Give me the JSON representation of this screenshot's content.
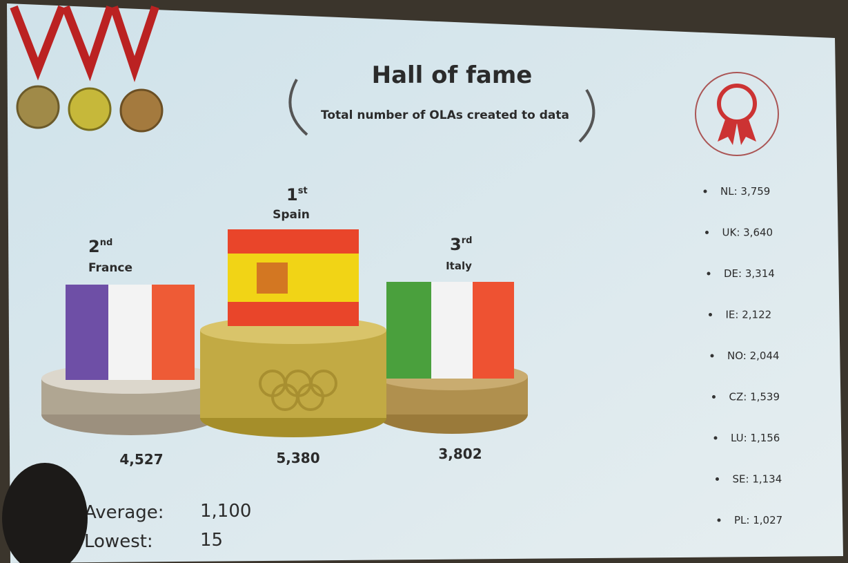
{
  "header": {
    "title": "Hall of fame",
    "subtitle": "Total number of OLAs created to data"
  },
  "podium": [
    {
      "rank": "1",
      "rank_suffix": "st",
      "country": "Spain",
      "total": "5,380"
    },
    {
      "rank": "2",
      "rank_suffix": "nd",
      "country": "France",
      "total": "4,527"
    },
    {
      "rank": "3",
      "rank_suffix": "rd",
      "country": "Italy",
      "total": "3,802"
    }
  ],
  "stats": [
    {
      "label": "Average:",
      "value": "1,100"
    },
    {
      "label": "Lowest:",
      "value": "15"
    }
  ],
  "ranking_list": [
    "NL: 3,759",
    "UK: 3,640",
    "DE: 3,314",
    "IE: 2,122",
    "NO: 2,044",
    "CZ: 1,539",
    "LU: 1,156",
    "SE: 1,134",
    "PL: 1,027"
  ]
}
